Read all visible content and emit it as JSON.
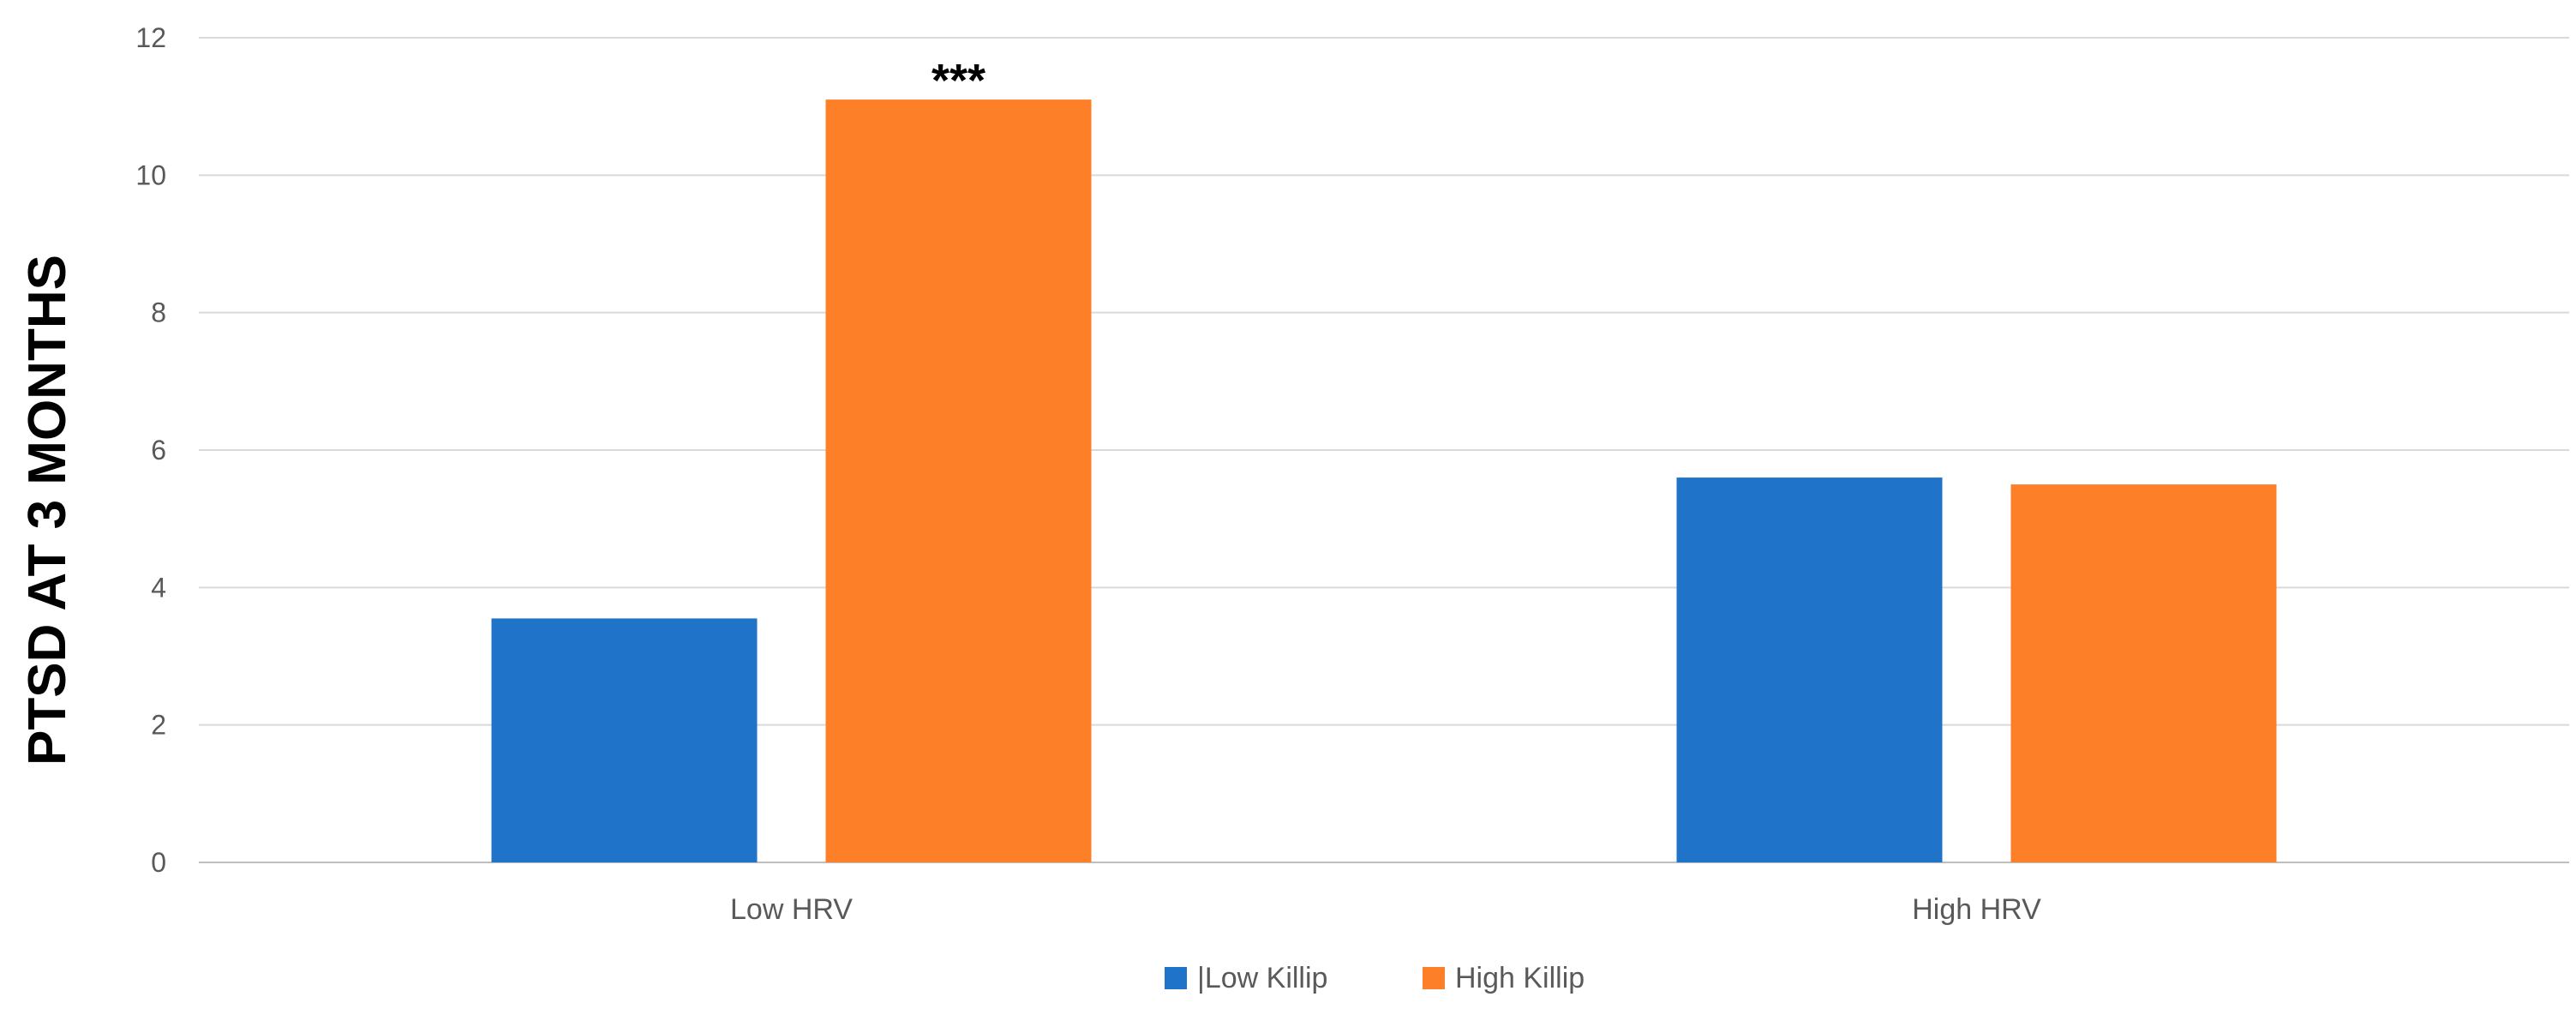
{
  "chart_data": {
    "type": "bar",
    "title": "",
    "xlabel": "",
    "ylabel": "PTSD AT 3 MONTHS",
    "categories": [
      "Low HRV",
      "High HRV"
    ],
    "series": [
      {
        "name": "|Low Killip",
        "color": "#1f73c8",
        "values": [
          3.55,
          5.6
        ]
      },
      {
        "name": "High Killip",
        "color": "#fd7f28",
        "values": [
          11.1,
          5.5
        ]
      }
    ],
    "ylim": [
      0,
      12
    ],
    "yticks": [
      "0",
      "2",
      "4",
      "6",
      "8",
      "10",
      "12"
    ],
    "annotations": [
      {
        "text": "***",
        "category": "Low HRV",
        "series": "High Killip"
      }
    ],
    "grid": true,
    "legend": "bottom-center"
  }
}
